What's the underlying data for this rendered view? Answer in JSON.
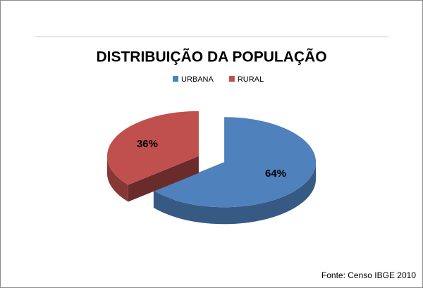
{
  "chart_data": {
    "type": "pie",
    "title": "DISTRIBUIÇÃO DA POPULAÇÃO",
    "categories": [
      "URBANA",
      "RURAL"
    ],
    "values": [
      64,
      36
    ],
    "value_labels": [
      "64%",
      "36%"
    ],
    "colors": [
      "#4f81bd",
      "#c0504d"
    ],
    "legend": "top",
    "exploded": true,
    "source": "Fonte: Censo IBGE 2010"
  }
}
